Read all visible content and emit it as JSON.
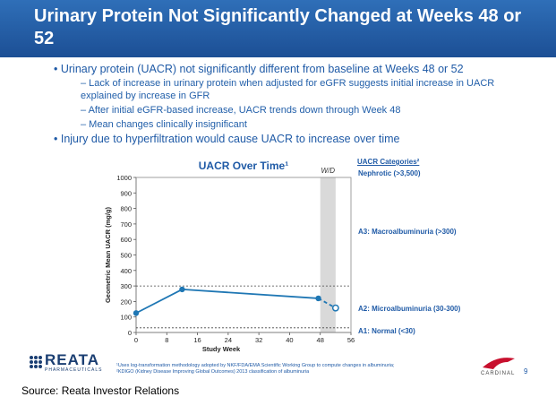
{
  "header": {
    "title": "Urinary Protein Not Significantly Changed at Weeks 48 or 52"
  },
  "bullets": [
    {
      "level": 1,
      "text": "• Urinary protein (UACR) not significantly different from baseline at Weeks 48 or 52"
    },
    {
      "level": 2,
      "text": "– Lack of increase in urinary protein when adjusted for eGFR suggests initial increase in UACR explained by increase in GFR"
    },
    {
      "level": 2,
      "text": "– After initial eGFR-based increase, UACR trends down through Week 48"
    },
    {
      "level": 2,
      "text": "– Mean changes clinically insignificant"
    },
    {
      "level": 1,
      "text": "• Injury due to hyperfiltration would cause UACR to increase over time"
    }
  ],
  "categories_panel": {
    "heading": "UACR Categories²",
    "items": [
      {
        "label": "Nephrotic (>3,500)"
      },
      {
        "label": "A3: Macroalbuminuria (>300)"
      },
      {
        "label": "A2: Microalbuminuria (30-300)"
      },
      {
        "label": "A1: Normal (<30)"
      }
    ]
  },
  "footnotes": [
    "¹Uses log-transformation methodology adopted by NKF/FDA/EMA Scientific Working Group to compute changes in albuminuria;",
    "²KDIGO (Kidney Disease Improving Global Outcomes) 2013 classification of albuminuria"
  ],
  "branding": {
    "reata": "REATA",
    "reata_sub": "PHARMACEUTICALS",
    "cardinal": "CARDINAL",
    "page": "9",
    "source": "Source: Reata Investor Relations"
  },
  "colors": {
    "header": "#1c4f95",
    "line": "#1f77b4",
    "text_blue": "#1f5aa6"
  },
  "chart_data": {
    "type": "line",
    "title": "UACR Over Time¹",
    "xlabel": "Study Week",
    "ylabel": "Geometric Mean UACR (mg/g)",
    "xlim": [
      0,
      56
    ],
    "ylim": [
      0,
      1000
    ],
    "x_ticks": [
      0,
      8,
      16,
      24,
      32,
      40,
      48,
      56
    ],
    "y_ticks": [
      0,
      100,
      200,
      300,
      400,
      500,
      600,
      700,
      800,
      900,
      1000
    ],
    "withdrawal_label": "W/D",
    "withdrawal_range": [
      48,
      52
    ],
    "reference_lines": [
      300,
      30
    ],
    "series": [
      {
        "points": [
          [
            0,
            125
          ],
          [
            12,
            278
          ],
          [
            47.5,
            220
          ]
        ],
        "style": "solid"
      },
      {
        "points": [
          [
            47.5,
            220
          ],
          [
            52,
            158
          ]
        ],
        "style": "dashed"
      }
    ]
  }
}
